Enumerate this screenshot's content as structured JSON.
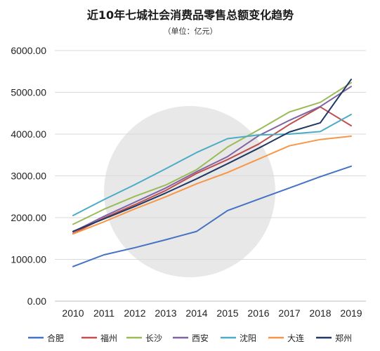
{
  "chart_data": {
    "type": "line",
    "title": "近10年七城社会消费品零售总额变化趋势",
    "subtitle": "（单位：亿元）",
    "xlabel": "",
    "ylabel": "",
    "categories": [
      "2010",
      "2011",
      "2012",
      "2013",
      "2014",
      "2015",
      "2016",
      "2017",
      "2018",
      "2019"
    ],
    "ylim": [
      0,
      6000
    ],
    "yticks": [
      "0.00",
      "1000.00",
      "2000.00",
      "3000.00",
      "4000.00",
      "5000.00",
      "6000.00"
    ],
    "grid": true,
    "legend_position": "bottom",
    "series": [
      {
        "name": "合肥",
        "color": "#4472c4",
        "values": [
          828,
          1110,
          1280,
          1470,
          1670,
          2170,
          2440,
          2710,
          2980,
          3230
        ]
      },
      {
        "name": "福州",
        "color": "#c0504d",
        "values": [
          1620,
          1990,
          2310,
          2650,
          3060,
          3390,
          3760,
          4230,
          4650,
          4200
        ]
      },
      {
        "name": "长沙",
        "color": "#9bbb59",
        "values": [
          1840,
          2200,
          2510,
          2780,
          3150,
          3690,
          4100,
          4530,
          4760,
          5230
        ]
      },
      {
        "name": "西安",
        "color": "#8064a2",
        "values": [
          1660,
          2030,
          2370,
          2710,
          3100,
          3460,
          3960,
          4330,
          4660,
          5140
        ]
      },
      {
        "name": "沈阳",
        "color": "#4bacc6",
        "values": [
          2050,
          2430,
          2790,
          3170,
          3560,
          3890,
          3980,
          4000,
          4060,
          4470
        ]
      },
      {
        "name": "大连",
        "color": "#f79646",
        "values": [
          1610,
          1900,
          2210,
          2500,
          2810,
          3080,
          3400,
          3720,
          3870,
          3950
        ]
      },
      {
        "name": "郑州",
        "color": "#1f3864",
        "values": [
          1670,
          1970,
          2270,
          2590,
          2930,
          3290,
          3660,
          4050,
          4270,
          5310
        ]
      }
    ]
  }
}
